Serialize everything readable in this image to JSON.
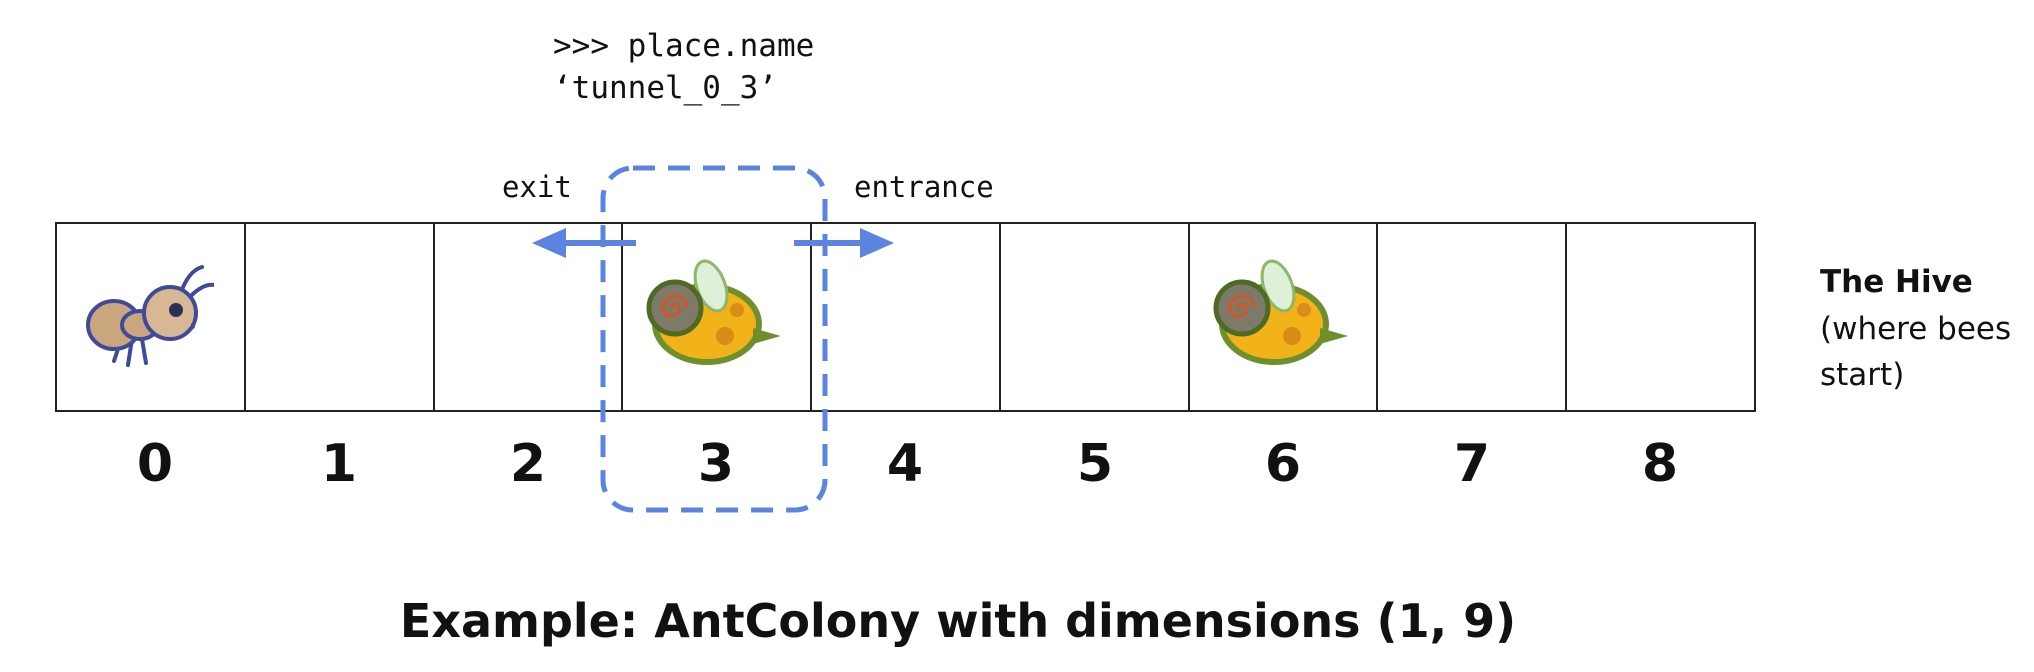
{
  "code": {
    "line1": ">>> place.name",
    "line2": "‘tunnel_0_3’"
  },
  "labels": {
    "exit": "exit",
    "entrance": "entrance"
  },
  "cells": [
    {
      "index": "0",
      "occupant": "ant"
    },
    {
      "index": "1",
      "occupant": ""
    },
    {
      "index": "2",
      "occupant": ""
    },
    {
      "index": "3",
      "occupant": "bee"
    },
    {
      "index": "4",
      "occupant": ""
    },
    {
      "index": "5",
      "occupant": ""
    },
    {
      "index": "6",
      "occupant": "bee"
    },
    {
      "index": "7",
      "occupant": ""
    },
    {
      "index": "8",
      "occupant": ""
    }
  ],
  "hive": {
    "title": "The Hive",
    "subtitle": "(where bees start)"
  },
  "caption": "Example: AntColony with dimensions (1, 9)",
  "colors": {
    "highlight": "#5a84e0",
    "border": "#222222",
    "bee_yellow": "#f2b21a",
    "bee_green": "#6f8f2c",
    "ant_tan": "#c9a67e",
    "ant_outline": "#3f4a9a"
  }
}
